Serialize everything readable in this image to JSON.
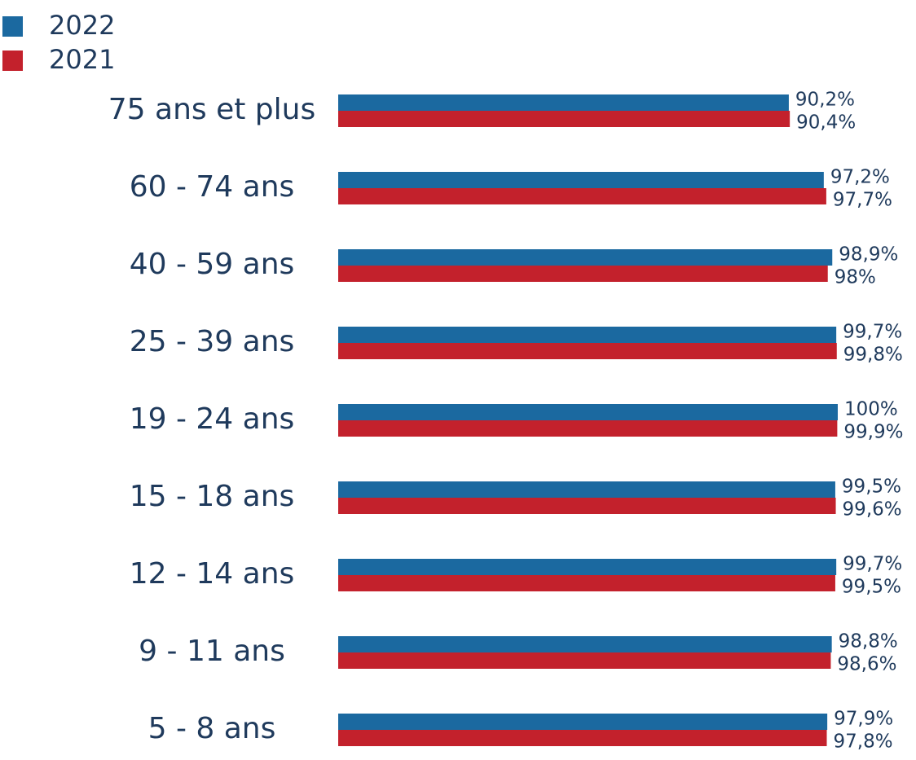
{
  "chart_data": {
    "type": "bar",
    "orientation": "horizontal",
    "categories": [
      "75 ans et plus",
      "60 - 74 ans",
      "40 - 59 ans",
      "25 - 39 ans",
      "19 - 24 ans",
      "15 - 18 ans",
      "12 - 14 ans",
      "9 - 11 ans",
      "5 - 8 ans"
    ],
    "series": [
      {
        "name": "2022",
        "color": "#1b69a0",
        "values": [
          90.2,
          97.2,
          98.9,
          99.7,
          100,
          99.5,
          99.7,
          98.8,
          97.9
        ],
        "value_labels": [
          "90,2%",
          "97,2%",
          "98,9%",
          "99,7%",
          "100%",
          "99,5%",
          "99,7%",
          "98,8%",
          "97,9%"
        ]
      },
      {
        "name": "2021",
        "color": "#c3212c",
        "values": [
          90.4,
          97.7,
          98,
          99.8,
          99.9,
          99.6,
          99.5,
          98.6,
          97.8
        ],
        "value_labels": [
          "90,4%",
          "97,7%",
          "98%",
          "99,8%",
          "99,9%",
          "99,6%",
          "99,5%",
          "98,6%",
          "97,8%"
        ]
      }
    ]
  }
}
